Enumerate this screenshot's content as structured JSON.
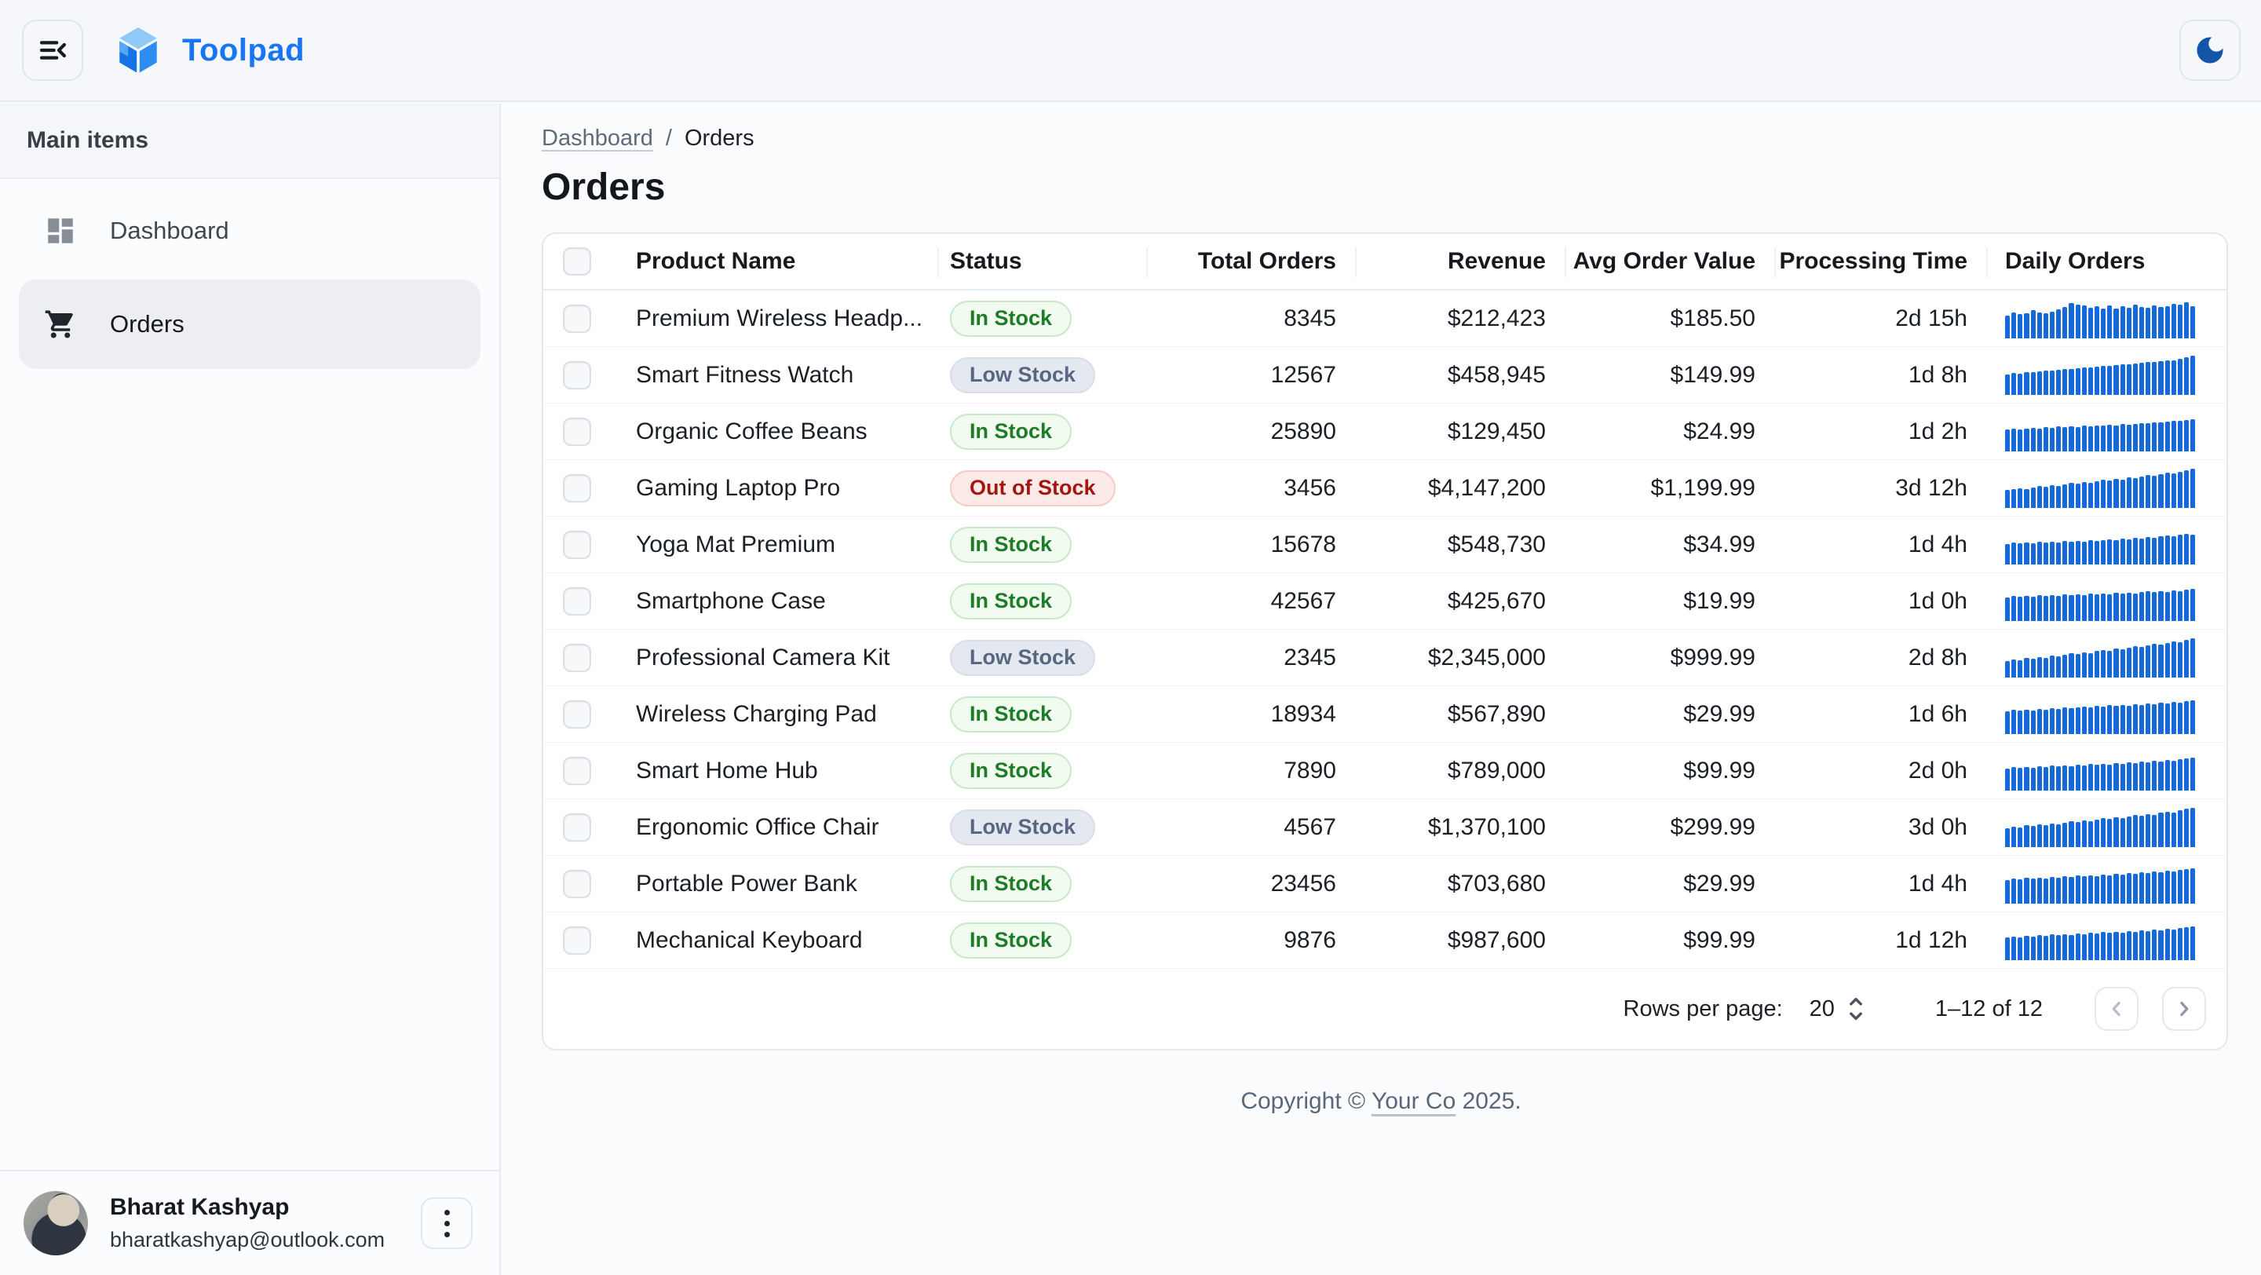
{
  "topbar": {
    "app_name": "Toolpad"
  },
  "sidebar": {
    "section_label": "Main items",
    "items": [
      {
        "label": "Dashboard",
        "icon": "dashboard-icon",
        "selected": false
      },
      {
        "label": "Orders",
        "icon": "cart-icon",
        "selected": true
      }
    ],
    "user": {
      "name": "Bharat Kashyap",
      "email": "bharatkashyap@outlook.com"
    }
  },
  "breadcrumb": {
    "items": [
      "Dashboard",
      "Orders"
    ],
    "separator": "/"
  },
  "page": {
    "title": "Orders"
  },
  "table": {
    "columns": [
      "Product Name",
      "Status",
      "Total Orders",
      "Revenue",
      "Avg Order Value",
      "Processing Time",
      "Daily Orders"
    ],
    "rows": [
      {
        "product": "Premium Wireless Headp...",
        "status": "In Stock",
        "status_kind": "in",
        "total_orders": "8345",
        "revenue": "$212,423",
        "avg_order_value": "$185.50",
        "processing_time": "2d 15h",
        "spark": [
          58,
          66,
          62,
          64,
          72,
          66,
          63,
          68,
          73,
          80,
          90,
          85,
          83,
          78,
          82,
          76,
          84,
          75,
          82,
          78,
          86,
          80,
          77,
          84,
          79,
          82,
          88,
          86,
          91,
          82
        ]
      },
      {
        "product": "Smart Fitness Watch",
        "status": "Low Stock",
        "status_kind": "low",
        "total_orders": "12567",
        "revenue": "$458,945",
        "avg_order_value": "$149.99",
        "processing_time": "1d 8h",
        "spark": [
          52,
          56,
          54,
          58,
          57,
          60,
          62,
          61,
          64,
          66,
          65,
          68,
          70,
          69,
          72,
          74,
          73,
          76,
          78,
          77,
          80,
          82,
          84,
          83,
          86,
          88,
          87,
          92,
          96,
          100
        ]
      },
      {
        "product": "Organic Coffee Beans",
        "status": "In Stock",
        "status_kind": "in",
        "total_orders": "25890",
        "revenue": "$129,450",
        "avg_order_value": "$24.99",
        "processing_time": "1d 2h",
        "spark": [
          55,
          58,
          56,
          57,
          60,
          58,
          62,
          60,
          63,
          61,
          64,
          62,
          65,
          64,
          66,
          65,
          68,
          66,
          69,
          68,
          70,
          72,
          71,
          74,
          73,
          76,
          78,
          77,
          80,
          82
        ]
      },
      {
        "product": "Gaming Laptop Pro",
        "status": "Out of Stock",
        "status_kind": "out",
        "total_orders": "3456",
        "revenue": "$4,147,200",
        "avg_order_value": "$1,199.99",
        "processing_time": "3d 12h",
        "spark": [
          45,
          48,
          50,
          47,
          52,
          55,
          53,
          58,
          56,
          60,
          63,
          61,
          66,
          64,
          68,
          71,
          69,
          74,
          72,
          77,
          75,
          80,
          83,
          81,
          86,
          89,
          87,
          92,
          96,
          100
        ]
      },
      {
        "product": "Yoga Mat Premium",
        "status": "In Stock",
        "status_kind": "in",
        "total_orders": "15678",
        "revenue": "$548,730",
        "avg_order_value": "$34.99",
        "processing_time": "1d 4h",
        "spark": [
          52,
          55,
          53,
          56,
          54,
          57,
          55,
          58,
          56,
          59,
          57,
          60,
          58,
          61,
          59,
          62,
          64,
          62,
          66,
          64,
          67,
          65,
          70,
          68,
          72,
          74,
          72,
          76,
          78,
          76
        ]
      },
      {
        "product": "Smartphone Case",
        "status": "In Stock",
        "status_kind": "in",
        "total_orders": "42567",
        "revenue": "$425,670",
        "avg_order_value": "$19.99",
        "processing_time": "1d 0h",
        "spark": [
          60,
          63,
          61,
          64,
          62,
          65,
          63,
          66,
          64,
          67,
          65,
          68,
          66,
          69,
          67,
          70,
          68,
          71,
          69,
          72,
          70,
          73,
          75,
          73,
          76,
          74,
          78,
          76,
          80,
          82
        ]
      },
      {
        "product": "Professional Camera Kit",
        "status": "Low Stock",
        "status_kind": "low",
        "total_orders": "2345",
        "revenue": "$2,345,000",
        "avg_order_value": "$999.99",
        "processing_time": "2d 8h",
        "spark": [
          42,
          46,
          44,
          49,
          47,
          52,
          50,
          55,
          53,
          58,
          61,
          59,
          64,
          62,
          67,
          70,
          68,
          73,
          71,
          76,
          79,
          77,
          82,
          85,
          83,
          88,
          92,
          90,
          96,
          100
        ]
      },
      {
        "product": "Wireless Charging Pad",
        "status": "In Stock",
        "status_kind": "in",
        "total_orders": "18934",
        "revenue": "$567,890",
        "avg_order_value": "$29.99",
        "processing_time": "1d 6h",
        "spark": [
          58,
          61,
          59,
          62,
          60,
          64,
          62,
          66,
          64,
          67,
          65,
          68,
          70,
          68,
          72,
          70,
          73,
          71,
          74,
          72,
          76,
          74,
          78,
          76,
          80,
          78,
          82,
          80,
          84,
          86
        ]
      },
      {
        "product": "Smart Home Hub",
        "status": "In Stock",
        "status_kind": "in",
        "total_orders": "7890",
        "revenue": "$789,000",
        "avg_order_value": "$99.99",
        "processing_time": "2d 0h",
        "spark": [
          56,
          59,
          57,
          60,
          58,
          61,
          59,
          63,
          61,
          64,
          62,
          66,
          64,
          67,
          65,
          68,
          66,
          70,
          68,
          71,
          69,
          73,
          71,
          75,
          73,
          77,
          75,
          79,
          81,
          83
        ]
      },
      {
        "product": "Ergonomic Office Chair",
        "status": "Low Stock",
        "status_kind": "low",
        "total_orders": "4567",
        "revenue": "$1,370,100",
        "avg_order_value": "$299.99",
        "processing_time": "3d 0h",
        "spark": [
          48,
          52,
          50,
          55,
          53,
          57,
          55,
          60,
          58,
          62,
          65,
          63,
          68,
          66,
          70,
          73,
          71,
          76,
          74,
          78,
          81,
          79,
          84,
          82,
          87,
          90,
          88,
          93,
          97,
          100
        ]
      },
      {
        "product": "Portable Power Bank",
        "status": "In Stock",
        "status_kind": "in",
        "total_orders": "23456",
        "revenue": "$703,680",
        "avg_order_value": "$29.99",
        "processing_time": "1d 4h",
        "spark": [
          60,
          63,
          61,
          65,
          63,
          66,
          64,
          68,
          66,
          69,
          67,
          71,
          69,
          72,
          70,
          74,
          72,
          75,
          73,
          77,
          75,
          79,
          77,
          81,
          79,
          83,
          81,
          85,
          87,
          89
        ]
      },
      {
        "product": "Mechanical Keyboard",
        "status": "In Stock",
        "status_kind": "in",
        "total_orders": "9876",
        "revenue": "$987,600",
        "avg_order_value": "$99.99",
        "processing_time": "1d 12h",
        "spark": [
          57,
          60,
          58,
          62,
          60,
          63,
          61,
          65,
          63,
          66,
          64,
          68,
          66,
          69,
          67,
          71,
          69,
          72,
          70,
          74,
          72,
          76,
          74,
          78,
          76,
          80,
          78,
          82,
          84,
          86
        ]
      }
    ]
  },
  "pagination": {
    "rows_per_page_label": "Rows per page:",
    "rows_per_page": "20",
    "range": "1–12 of 12"
  },
  "footer": {
    "prefix": "Copyright ©",
    "company": "Your Co",
    "suffix": "2025."
  },
  "colors": {
    "brand": "#1876F2",
    "spark": "#1669D9",
    "moon": "#1356A8",
    "chip-in-bg": "#F1FBF0",
    "chip-in-border": "#C7EAC6",
    "chip-in-text": "#1D7C27",
    "chip-low-bg": "#E4E8F1",
    "chip-low-border": "#D8DDE9",
    "chip-low-text": "#57677F",
    "chip-out-bg": "#FCEAE8",
    "chip-out-border": "#F4CCC6",
    "chip-out-text": "#A21711"
  }
}
